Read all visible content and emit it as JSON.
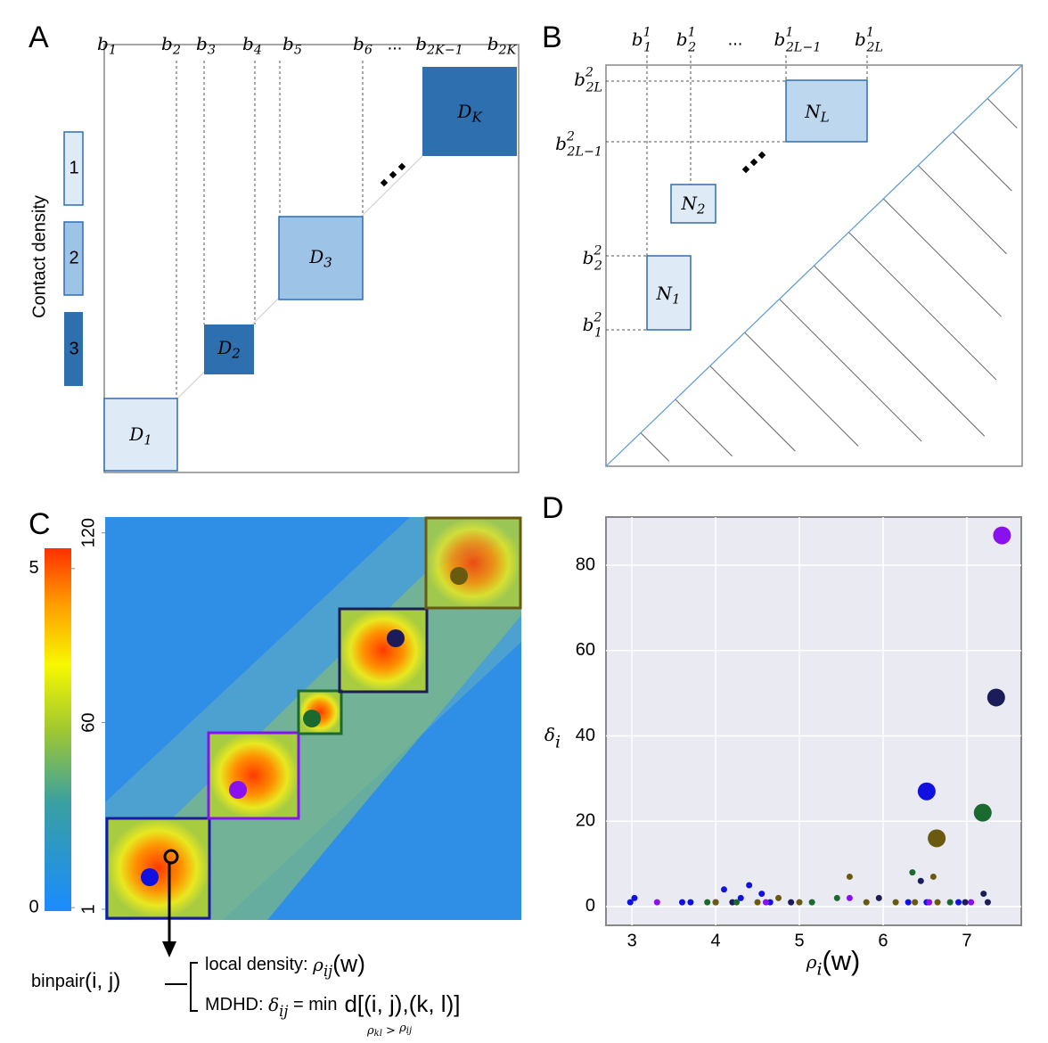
{
  "panel_a": {
    "label": "A",
    "boundaries": [
      {
        "base": "b",
        "sub": "1"
      },
      {
        "base": "b",
        "sub": "2"
      },
      {
        "base": "b",
        "sub": "3"
      },
      {
        "base": "b",
        "sub": "4"
      },
      {
        "base": "b",
        "sub": "5"
      },
      {
        "base": "b",
        "sub": "6"
      },
      "...",
      {
        "base": "b",
        "sub": "2K−1"
      },
      {
        "base": "b",
        "sub": "2K"
      }
    ],
    "domains": [
      {
        "base": "D",
        "sub": "1"
      },
      {
        "base": "D",
        "sub": "2"
      },
      {
        "base": "D",
        "sub": "3"
      },
      {
        "base": "D",
        "sub": "K"
      }
    ],
    "legend": {
      "title": "Contact density",
      "levels": [
        "1",
        "2",
        "3"
      ]
    }
  },
  "panel_b": {
    "label": "B",
    "top_boundaries": [
      {
        "base": "b",
        "sup": "1",
        "sub": "1"
      },
      {
        "base": "b",
        "sup": "1",
        "sub": "2"
      },
      "...",
      {
        "base": "b",
        "sup": "1",
        "sub": "2L−1"
      },
      {
        "base": "b",
        "sup": "1",
        "sub": "2L"
      }
    ],
    "left_boundaries": [
      {
        "base": "b",
        "sup": "2",
        "sub": "2L"
      },
      {
        "base": "b",
        "sup": "2",
        "sub": "2L−1"
      },
      {
        "base": "b",
        "sup": "2",
        "sub": "2"
      },
      {
        "base": "b",
        "sup": "2",
        "sub": "1"
      }
    ],
    "nested": [
      {
        "base": "N",
        "sub": "1"
      },
      {
        "base": "N",
        "sub": "2"
      },
      {
        "base": "N",
        "sub": "L"
      }
    ]
  },
  "panel_c": {
    "label": "C",
    "colorbar": {
      "range": [
        -0.05,
        5.3
      ],
      "ticks": [
        0,
        5
      ]
    },
    "axis": {
      "range": [
        -2.4,
        125
      ],
      "ticks": [
        1,
        60,
        120
      ]
    },
    "annotation": {
      "binpair": {
        "base": "binpair",
        "arg": "(i, j)"
      },
      "local_density": {
        "label": "local density: ",
        "base": "ρ",
        "sub": "ij",
        "arg": "(w)"
      },
      "mdhd": {
        "label": "MDHD: ",
        "base": "δ",
        "sub": "ij",
        "eq": " = ",
        "op": "min",
        "expr": "d[(i, j),(k, l)]",
        "under": {
          "a": "ρ",
          "a_sub": "kl",
          "rel": " > ",
          "b": "ρ",
          "b_sub": "ij"
        }
      }
    }
  },
  "chart_data": {
    "type": "scatter",
    "panel_label": "D",
    "x_label": {
      "base": "ρ",
      "sub": "i",
      "arg": "(w)"
    },
    "y_label": {
      "base": "δ",
      "sub": "i"
    },
    "xlim": [
      2.69,
      7.65
    ],
    "ylim": [
      -4.4,
      91.3
    ],
    "xticks": [
      3,
      4,
      5,
      6,
      7
    ],
    "yticks": [
      0,
      20,
      40,
      60,
      80
    ],
    "grid": true,
    "series": [
      {
        "color": "#1010e0",
        "x": [
          2.98,
          3.03,
          3.6,
          3.7,
          4.1,
          4.3,
          4.4,
          4.55,
          4.65,
          6.3,
          6.52,
          6.9
        ],
        "values": [
          1,
          2,
          1,
          1,
          4,
          2,
          5,
          3,
          1,
          1,
          1,
          1
        ]
      },
      {
        "color": "#8a10f0",
        "x": [
          3.3,
          4.0,
          4.6,
          5.6,
          6.55,
          7.05
        ],
        "values": [
          1,
          1,
          1,
          2,
          1,
          1
        ]
      },
      {
        "color": "#1c1c5a",
        "x": [
          4.2,
          4.9,
          5.95,
          6.45,
          7.2,
          7.25,
          6.98
        ],
        "values": [
          1,
          1,
          2,
          6,
          3,
          1,
          1
        ]
      },
      {
        "color": "#1a6a30",
        "x": [
          3.9,
          4.25,
          5.15,
          5.45,
          6.35,
          6.8
        ],
        "values": [
          1,
          1,
          1,
          2,
          8,
          1
        ]
      },
      {
        "color": "#6a5a10",
        "x": [
          4.0,
          4.5,
          4.75,
          5.0,
          5.6,
          5.8,
          6.15,
          6.38,
          6.6,
          6.65
        ],
        "values": [
          1,
          1,
          2,
          1,
          7,
          1,
          1,
          1,
          7,
          1
        ]
      }
    ],
    "centers": {
      "x": [
        7.42,
        7.35,
        6.52,
        7.19,
        6.64
      ],
      "values": [
        87,
        49,
        27,
        22,
        16
      ],
      "colors": [
        "#8a10f0",
        "#1c1c5a",
        "#1010e0",
        "#1a6a30",
        "#6a5a10"
      ]
    }
  }
}
